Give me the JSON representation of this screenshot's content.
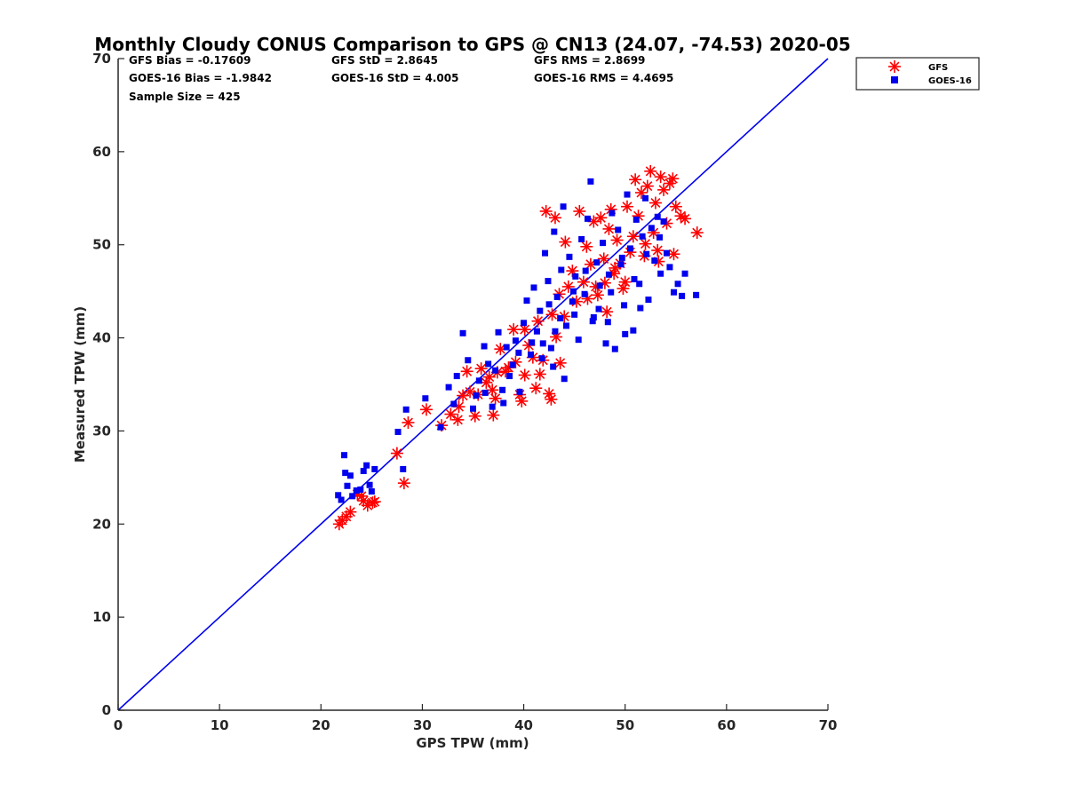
{
  "chart_data": {
    "type": "scatter",
    "title": "Monthly Cloudy CONUS Comparison to GPS @ CN13 (24.07, -74.53) 2020-05",
    "xlabel": "GPS TPW (mm)",
    "ylabel": "Measured TPW (mm)",
    "xlim": [
      0,
      70
    ],
    "ylim": [
      0,
      70
    ],
    "xticks": [
      0,
      10,
      20,
      30,
      40,
      50,
      60,
      70
    ],
    "yticks": [
      0,
      10,
      20,
      30,
      40,
      50,
      60,
      70
    ],
    "xtick_labels": [
      "0",
      "10",
      "20",
      "30",
      "40",
      "50",
      "60",
      "70"
    ],
    "ytick_labels": [
      "0",
      "10",
      "20",
      "30",
      "40",
      "50",
      "60",
      "70"
    ],
    "grid": false,
    "legend_position": "top-right, outside plot",
    "stats": {
      "gfs_bias": "GFS Bias = -0.17609",
      "gfs_std": "GFS StD = 2.8645",
      "gfs_rms": "GFS RMS = 2.8699",
      "goes_bias": "GOES-16 Bias = -1.9842",
      "goes_std": "GOES-16 StD = 4.005",
      "goes_rms": "GOES-16 RMS = 4.4695",
      "sample_size": "Sample Size = 425"
    },
    "reference_line": {
      "from": [
        0,
        0
      ],
      "to": [
        70,
        70
      ],
      "color": "#0000ee"
    },
    "series": [
      {
        "name": "GFS",
        "marker": "asterisk",
        "color": "#ff0000",
        "points": [
          [
            21.8,
            20.0
          ],
          [
            22.1,
            20.4
          ],
          [
            22.5,
            20.8
          ],
          [
            22.9,
            21.3
          ],
          [
            23.6,
            23.2
          ],
          [
            24.2,
            22.5
          ],
          [
            24.6,
            22.0
          ],
          [
            25.1,
            22.3
          ],
          [
            24.0,
            23.0
          ],
          [
            25.3,
            22.4
          ],
          [
            27.5,
            27.6
          ],
          [
            28.2,
            24.4
          ],
          [
            28.6,
            30.9
          ],
          [
            30.4,
            32.3
          ],
          [
            31.9,
            30.6
          ],
          [
            32.8,
            31.8
          ],
          [
            33.6,
            32.6
          ],
          [
            34.0,
            33.8
          ],
          [
            34.4,
            36.4
          ],
          [
            35.2,
            31.6
          ],
          [
            35.8,
            36.7
          ],
          [
            36.3,
            35.2
          ],
          [
            36.9,
            34.4
          ],
          [
            37.0,
            31.7
          ],
          [
            37.4,
            36.3
          ],
          [
            37.7,
            38.8
          ],
          [
            37.2,
            33.5
          ],
          [
            38.5,
            36.8
          ],
          [
            39.2,
            37.4
          ],
          [
            39.6,
            33.9
          ],
          [
            39.8,
            33.2
          ],
          [
            40.1,
            36.0
          ],
          [
            40.5,
            39.2
          ],
          [
            40.9,
            37.9
          ],
          [
            41.2,
            34.6
          ],
          [
            41.6,
            36.1
          ],
          [
            41.9,
            37.6
          ],
          [
            42.2,
            53.6
          ],
          [
            42.5,
            34.0
          ],
          [
            42.7,
            33.4
          ],
          [
            42.8,
            42.5
          ],
          [
            43.1,
            52.9
          ],
          [
            43.6,
            37.3
          ],
          [
            43.5,
            44.7
          ],
          [
            44.1,
            50.3
          ],
          [
            44.4,
            45.5
          ],
          [
            44.8,
            47.2
          ],
          [
            45.2,
            43.9
          ],
          [
            45.5,
            53.6
          ],
          [
            45.9,
            46.0
          ],
          [
            46.2,
            49.8
          ],
          [
            46.6,
            47.9
          ],
          [
            46.9,
            52.5
          ],
          [
            47.3,
            44.6
          ],
          [
            47.6,
            52.9
          ],
          [
            47.9,
            48.5
          ],
          [
            48.2,
            42.8
          ],
          [
            48.4,
            51.7
          ],
          [
            48.6,
            53.8
          ],
          [
            48.9,
            46.9
          ],
          [
            49.2,
            50.5
          ],
          [
            49.5,
            48.0
          ],
          [
            49.8,
            45.3
          ],
          [
            50.2,
            54.1
          ],
          [
            50.5,
            49.2
          ],
          [
            50.8,
            50.9
          ],
          [
            51.0,
            57.0
          ],
          [
            51.3,
            53.1
          ],
          [
            51.6,
            55.6
          ],
          [
            51.9,
            48.8
          ],
          [
            52.2,
            56.3
          ],
          [
            52.5,
            57.9
          ],
          [
            52.8,
            51.3
          ],
          [
            53.0,
            54.5
          ],
          [
            53.2,
            49.4
          ],
          [
            53.5,
            57.3
          ],
          [
            53.8,
            55.9
          ],
          [
            54.1,
            52.3
          ],
          [
            54.4,
            56.6
          ],
          [
            54.7,
            57.1
          ],
          [
            55.0,
            54.1
          ],
          [
            55.5,
            53.1
          ],
          [
            55.9,
            52.8
          ],
          [
            57.1,
            51.3
          ],
          [
            40.1,
            40.9
          ],
          [
            41.4,
            41.8
          ],
          [
            43.2,
            40.1
          ],
          [
            44.0,
            42.3
          ],
          [
            46.3,
            44.2
          ],
          [
            47.1,
            45.5
          ],
          [
            48.0,
            45.9
          ],
          [
            49.0,
            47.5
          ],
          [
            50.0,
            46.0
          ],
          [
            52.0,
            50.1
          ],
          [
            53.3,
            48.2
          ],
          [
            54.8,
            49.0
          ],
          [
            39.0,
            40.9
          ],
          [
            38.2,
            36.4
          ],
          [
            36.6,
            35.8
          ],
          [
            35.5,
            33.9
          ],
          [
            34.7,
            34.2
          ],
          [
            33.5,
            31.2
          ]
        ]
      },
      {
        "name": "GOES-16",
        "marker": "square",
        "color": "#0000ee",
        "points": [
          [
            21.7,
            23.1
          ],
          [
            22.0,
            22.6
          ],
          [
            22.3,
            27.4
          ],
          [
            22.4,
            25.5
          ],
          [
            22.6,
            24.1
          ],
          [
            22.9,
            25.2
          ],
          [
            23.1,
            23.0
          ],
          [
            23.5,
            23.6
          ],
          [
            23.9,
            23.7
          ],
          [
            24.2,
            25.7
          ],
          [
            24.5,
            26.3
          ],
          [
            24.8,
            24.2
          ],
          [
            25.0,
            23.5
          ],
          [
            25.3,
            25.9
          ],
          [
            27.6,
            29.9
          ],
          [
            28.1,
            25.9
          ],
          [
            28.4,
            32.3
          ],
          [
            30.3,
            33.5
          ],
          [
            31.8,
            30.4
          ],
          [
            32.6,
            34.7
          ],
          [
            33.1,
            32.9
          ],
          [
            33.4,
            35.9
          ],
          [
            34.0,
            40.5
          ],
          [
            34.5,
            37.6
          ],
          [
            35.0,
            32.4
          ],
          [
            35.3,
            33.8
          ],
          [
            35.6,
            35.4
          ],
          [
            36.1,
            39.1
          ],
          [
            36.5,
            37.2
          ],
          [
            36.9,
            32.6
          ],
          [
            37.2,
            36.5
          ],
          [
            37.5,
            40.6
          ],
          [
            37.9,
            34.4
          ],
          [
            38.3,
            39.0
          ],
          [
            38.6,
            35.9
          ],
          [
            38.9,
            37.1
          ],
          [
            39.2,
            39.7
          ],
          [
            39.6,
            34.2
          ],
          [
            40.0,
            41.6
          ],
          [
            40.3,
            44.0
          ],
          [
            40.7,
            38.2
          ],
          [
            41.0,
            45.4
          ],
          [
            41.3,
            40.7
          ],
          [
            41.6,
            42.9
          ],
          [
            41.9,
            39.4
          ],
          [
            42.1,
            49.1
          ],
          [
            42.4,
            46.1
          ],
          [
            42.7,
            38.9
          ],
          [
            43.0,
            51.4
          ],
          [
            43.3,
            44.4
          ],
          [
            43.7,
            47.3
          ],
          [
            43.9,
            54.1
          ],
          [
            44.2,
            41.3
          ],
          [
            44.5,
            48.7
          ],
          [
            44.8,
            43.9
          ],
          [
            45.1,
            46.6
          ],
          [
            45.4,
            39.8
          ],
          [
            45.7,
            50.6
          ],
          [
            46.0,
            44.7
          ],
          [
            46.3,
            52.8
          ],
          [
            46.6,
            56.8
          ],
          [
            46.9,
            42.2
          ],
          [
            47.2,
            48.1
          ],
          [
            47.5,
            45.6
          ],
          [
            47.8,
            50.2
          ],
          [
            48.1,
            39.4
          ],
          [
            48.4,
            46.8
          ],
          [
            48.7,
            53.4
          ],
          [
            49.0,
            38.8
          ],
          [
            49.3,
            51.6
          ],
          [
            49.6,
            47.9
          ],
          [
            49.9,
            43.5
          ],
          [
            50.2,
            55.4
          ],
          [
            50.5,
            49.6
          ],
          [
            50.8,
            40.8
          ],
          [
            51.1,
            52.7
          ],
          [
            51.4,
            45.8
          ],
          [
            51.7,
            50.9
          ],
          [
            52.0,
            55.0
          ],
          [
            52.3,
            44.1
          ],
          [
            52.6,
            51.8
          ],
          [
            52.9,
            48.3
          ],
          [
            53.2,
            53.0
          ],
          [
            53.5,
            46.9
          ],
          [
            53.8,
            52.5
          ],
          [
            54.1,
            49.1
          ],
          [
            54.4,
            47.6
          ],
          [
            54.8,
            44.9
          ],
          [
            55.2,
            45.8
          ],
          [
            55.6,
            44.5
          ],
          [
            55.9,
            46.9
          ],
          [
            57.0,
            44.6
          ],
          [
            42.5,
            43.6
          ],
          [
            43.6,
            42.1
          ],
          [
            44.9,
            45.0
          ],
          [
            46.1,
            47.2
          ],
          [
            47.4,
            43.1
          ],
          [
            48.6,
            44.9
          ],
          [
            49.7,
            48.6
          ],
          [
            50.9,
            46.3
          ],
          [
            52.1,
            49.0
          ],
          [
            53.4,
            50.8
          ],
          [
            39.5,
            38.4
          ],
          [
            40.8,
            39.5
          ],
          [
            41.8,
            37.8
          ],
          [
            43.1,
            40.7
          ],
          [
            45.0,
            42.5
          ],
          [
            46.8,
            41.8
          ],
          [
            48.3,
            41.7
          ],
          [
            50.0,
            40.4
          ],
          [
            51.5,
            43.2
          ],
          [
            44.0,
            35.6
          ],
          [
            42.9,
            36.9
          ],
          [
            38.0,
            33.0
          ],
          [
            36.2,
            34.1
          ]
        ]
      }
    ]
  }
}
